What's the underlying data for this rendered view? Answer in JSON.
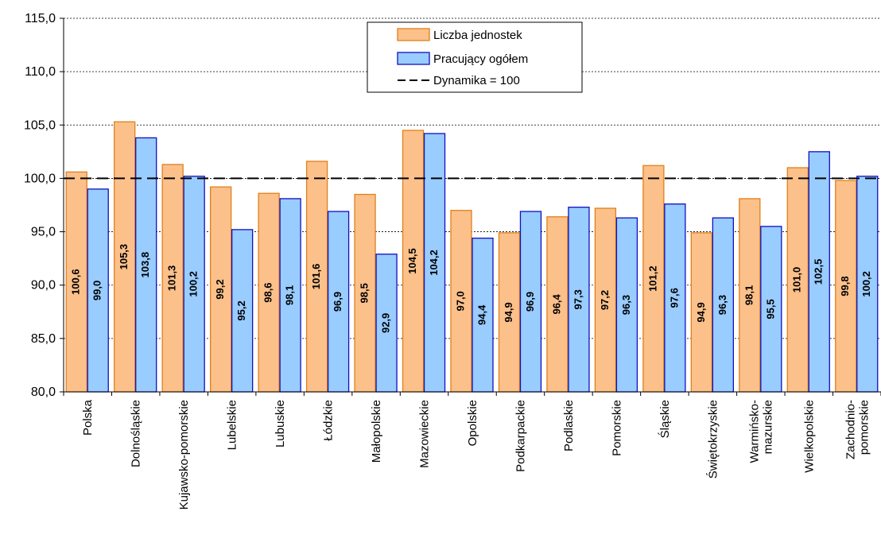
{
  "chart_data": {
    "type": "bar",
    "categories": [
      "Polska",
      "Dolnośląskie",
      "Kujawsko-pomorskie",
      "Lubelskie",
      "Lubuskie",
      "Łódzkie",
      "Małopolskie",
      "Mazowieckie",
      "Opolskie",
      "Podkarpackie",
      "Podlaskie",
      "Pomorskie",
      "Śląskie",
      "Świętokrzyskie",
      "Warmińsko-mazurskie",
      "Wielkopolskie",
      "Zachodnio-pomorskie"
    ],
    "series": [
      {
        "name": "Liczba jednostek",
        "color": "#fcc08a",
        "stroke": "#e0801a",
        "values": [
          100.6,
          105.3,
          101.3,
          99.2,
          98.6,
          101.6,
          98.5,
          104.5,
          97.0,
          94.9,
          96.4,
          97.2,
          101.2,
          94.9,
          98.1,
          101.0,
          99.8
        ],
        "labels": [
          "100,6",
          "105,3",
          "101,3",
          "99,2",
          "98,6",
          "101,6",
          "98,5",
          "104,5",
          "97,0",
          "94,9",
          "96,4",
          "97,2",
          "101,2",
          "94,9",
          "98,1",
          "101,0",
          "99,8"
        ]
      },
      {
        "name": "Pracujący ogółem",
        "color": "#99ccff",
        "stroke": "#1010c0",
        "values": [
          99.0,
          103.8,
          100.2,
          95.2,
          98.1,
          96.9,
          92.9,
          104.2,
          94.4,
          96.9,
          97.3,
          96.3,
          97.6,
          96.3,
          95.5,
          102.5,
          100.2
        ],
        "labels": [
          "99,0",
          "103,8",
          "100,2",
          "95,2",
          "98,1",
          "96,9",
          "92,9",
          "104,2",
          "94,4",
          "96,9",
          "97,3",
          "96,3",
          "97,6",
          "96,3",
          "95,5",
          "102,5",
          "100,2"
        ]
      }
    ],
    "reference_line": {
      "name": "Dynamika = 100",
      "value": 100
    },
    "ylim": [
      80,
      115
    ],
    "yticks": [
      80,
      85,
      90,
      95,
      100,
      105,
      110,
      115
    ],
    "ytick_labels": [
      "80,0",
      "85,0",
      "90,0",
      "95,0",
      "100,0",
      "105,0",
      "110,0",
      "115,0"
    ],
    "xtick_labels": [
      [
        "Polska"
      ],
      [
        "Dolnośląskie"
      ],
      [
        "Kujawsko-pomorskie"
      ],
      [
        "Lubelskie"
      ],
      [
        "Lubuskie"
      ],
      [
        "Łódzkie"
      ],
      [
        "Małopolskie"
      ],
      [
        "Mazowieckie"
      ],
      [
        "Opolskie"
      ],
      [
        "Podkarpackie"
      ],
      [
        "Podlaskie"
      ],
      [
        "Pomorskie"
      ],
      [
        "Śląskie"
      ],
      [
        "Świętokrzyskie"
      ],
      [
        "Warmińsko-",
        "mazurskie"
      ],
      [
        "Wielkopolskie"
      ],
      [
        "Zachodnio-",
        "pomorskie"
      ]
    ],
    "grid": true,
    "legend": "top-center",
    "title": "",
    "xlabel": "",
    "ylabel": ""
  }
}
